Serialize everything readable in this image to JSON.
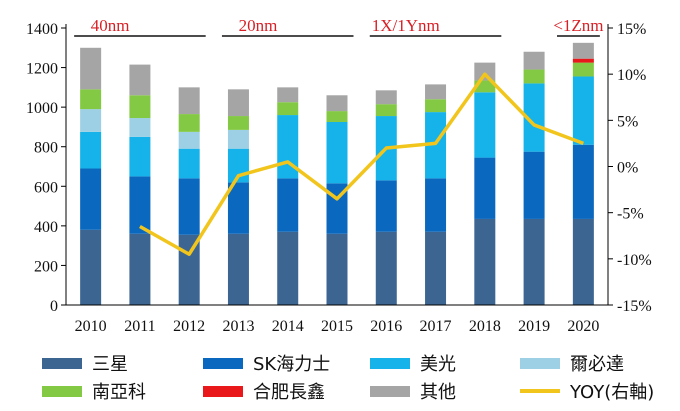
{
  "chart_data": {
    "type": "bar",
    "stacked": true,
    "categories": [
      "2010",
      "2011",
      "2012",
      "2013",
      "2014",
      "2015",
      "2016",
      "2017",
      "2018",
      "2019",
      "2020"
    ],
    "series": [
      {
        "name": "三星",
        "color": "#3c6591",
        "values": [
          380,
          360,
          355,
          360,
          370,
          360,
          370,
          370,
          435,
          435,
          435
        ]
      },
      {
        "name": "SK海力士",
        "color": "#0b68bf",
        "values": [
          310,
          290,
          285,
          260,
          270,
          255,
          260,
          270,
          310,
          340,
          375
        ]
      },
      {
        "name": "美光",
        "color": "#15b3ea",
        "values": [
          185,
          200,
          150,
          170,
          320,
          310,
          325,
          335,
          330,
          345,
          345
        ]
      },
      {
        "name": "爾必達",
        "color": "#9dd0e4",
        "values": [
          115,
          95,
          85,
          95,
          0,
          0,
          0,
          0,
          0,
          0,
          0
        ]
      },
      {
        "name": "南亞科",
        "color": "#83c943",
        "values": [
          100,
          115,
          90,
          70,
          65,
          55,
          60,
          65,
          60,
          70,
          70
        ]
      },
      {
        "name": "合肥長鑫",
        "color": "#e8181b",
        "values": [
          0,
          0,
          0,
          0,
          0,
          0,
          0,
          0,
          0,
          0,
          20
        ]
      },
      {
        "name": "其他",
        "color": "#a5a5a5",
        "values": [
          210,
          155,
          135,
          135,
          75,
          80,
          70,
          75,
          90,
          90,
          80
        ]
      }
    ],
    "line_series": {
      "name": "YOY(右軸)",
      "color": "#f2c51c",
      "values": [
        null,
        -6.5,
        -9.5,
        -1.0,
        0.5,
        -3.5,
        2.0,
        2.5,
        10.0,
        4.5,
        2.5
      ]
    },
    "ylim": [
      0,
      1400
    ],
    "yticks": [
      0,
      200,
      400,
      600,
      800,
      1000,
      1200,
      1400
    ],
    "y2lim": [
      -15,
      15
    ],
    "y2ticks": [
      "-15%",
      "-10%",
      "-5%",
      "0%",
      "5%",
      "10%",
      "15%"
    ],
    "nodes": [
      {
        "label": "40nm",
        "from": 2010,
        "to": 2012
      },
      {
        "label": "20nm",
        "from": 2013,
        "to": 2015
      },
      {
        "label": "1X/1Ynm",
        "from": 2016,
        "to": 2018
      },
      {
        "label": "<1Znm",
        "from": 2019.8,
        "to": 2020
      }
    ],
    "legend_position": "bottom"
  }
}
